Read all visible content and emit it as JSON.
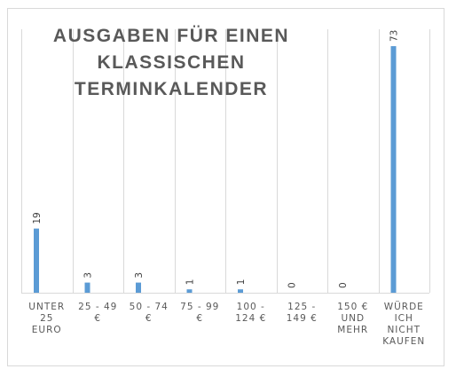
{
  "chart_data": {
    "type": "bar",
    "title": "AUSGABEN FÜR EINEN KLASSISCHEN TERMINKALENDER",
    "categories": [
      "UNTER 25 EURO",
      "25 - 49 €",
      "50 - 74 €",
      "75 - 99 €",
      "100 - 124 €",
      "125 - 149 €",
      "150 € UND MEHR",
      "WÜRDE ICH NICHT KAUFEN"
    ],
    "category_lines": [
      [
        "UNTER",
        "25",
        "EURO"
      ],
      [
        "25 - 49",
        "€"
      ],
      [
        "50 - 74",
        "€"
      ],
      [
        "75 - 99",
        "€"
      ],
      [
        "100 -",
        "124 €"
      ],
      [
        "125 -",
        "149 €"
      ],
      [
        "150 €",
        "UND",
        "MEHR"
      ],
      [
        "WÜRDE",
        "ICH",
        "NICHT",
        "KAUFEN"
      ]
    ],
    "values": [
      19,
      3,
      3,
      1,
      1,
      0,
      0,
      73
    ],
    "data_labels": [
      "19",
      "3",
      "3",
      "1",
      "1",
      "0",
      "0",
      "73"
    ],
    "ylim": [
      0,
      78
    ],
    "grid": "vertical",
    "legend": "none",
    "bar_color": "#5b9bd5"
  }
}
